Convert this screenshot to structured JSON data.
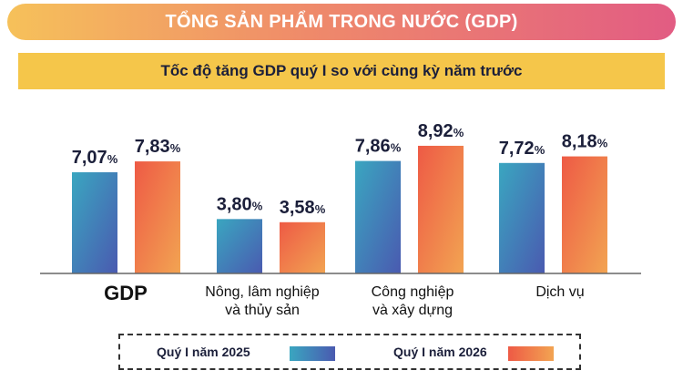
{
  "header": {
    "title": "TỔNG SẢN PHẨM TRONG NƯỚC (GDP)",
    "subtitle": "Tốc độ tăng GDP quý I so với cùng kỳ năm trước"
  },
  "colors": {
    "banner_start": "#f6c15a",
    "banner_end": "#e25c83",
    "subtitle_bg": "#f5c64a",
    "series_2025_top": "#4a5ab0",
    "series_2025_bottom": "#3aa6c0",
    "series_2026_top": "#ee5a45",
    "series_2026_bottom": "#f2a452",
    "text": "#1b1f3a"
  },
  "chart_data": {
    "type": "bar",
    "categories": [
      "GDP",
      "Nông, lâm nghiệp\nvà thủy sản",
      "Công nghiệp\nvà xây dựng",
      "Dịch vụ"
    ],
    "series": [
      {
        "name": "Quý I năm 2025",
        "values": [
          7.07,
          3.8,
          7.86,
          7.72
        ],
        "labels": [
          "7,07",
          "3,80",
          "7,86",
          "7,72"
        ]
      },
      {
        "name": "Quý I năm 2026",
        "values": [
          7.83,
          3.58,
          8.92,
          8.18
        ],
        "labels": [
          "7,83",
          "3,58",
          "8,92",
          "8,18"
        ]
      }
    ],
    "unit": "%",
    "title": "Tốc độ tăng GDP quý I so với cùng kỳ năm trước",
    "legend": "bottom"
  }
}
